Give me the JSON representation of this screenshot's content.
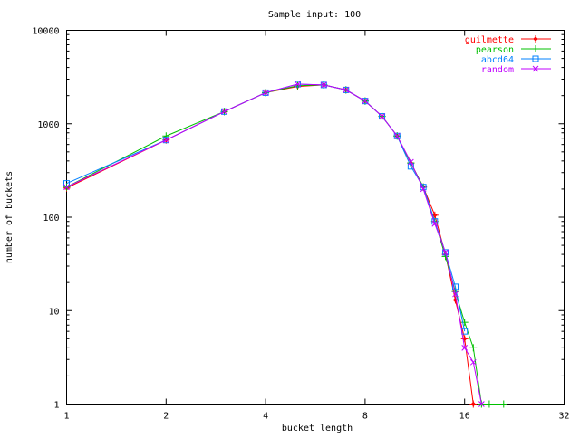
{
  "chart_data": {
    "type": "line",
    "title": "Sample input: 100",
    "xlabel": "bucket length",
    "ylabel": "number of buckets",
    "xscale": "log2",
    "yscale": "log10",
    "xlim": [
      1,
      32
    ],
    "ylim": [
      1,
      10000
    ],
    "xticks": [
      "1",
      "2",
      "4",
      "8",
      "16",
      "32"
    ],
    "yticks": [
      "1",
      "10",
      "100",
      "1000",
      "10000"
    ],
    "grid": false,
    "legend_position": "top-right",
    "series": [
      {
        "name": "guilmette",
        "color": "#ff0000",
        "marker": "plus-diamond",
        "x": [
          1,
          2,
          3,
          4,
          5,
          6,
          7,
          8,
          9,
          10,
          11,
          12,
          13,
          14,
          15,
          16,
          17
        ],
        "y": [
          205,
          670,
          1350,
          2150,
          2500,
          2600,
          2300,
          1750,
          1200,
          740,
          380,
          210,
          105,
          40,
          13,
          5,
          1
        ]
      },
      {
        "name": "pearson",
        "color": "#00c000",
        "marker": "plus",
        "x": [
          1,
          2,
          3,
          4,
          5,
          6,
          7,
          8,
          9,
          10,
          11,
          12,
          13,
          14,
          15,
          16,
          17,
          18,
          19,
          21
        ],
        "y": [
          210,
          740,
          1350,
          2150,
          2550,
          2600,
          2300,
          1750,
          1200,
          740,
          380,
          210,
          90,
          38,
          16,
          7.5,
          4,
          1,
          1,
          1
        ]
      },
      {
        "name": "abcd64",
        "color": "#0080ff",
        "marker": "square",
        "x": [
          1,
          2,
          3,
          4,
          5,
          6,
          7,
          8,
          9,
          10,
          11,
          12,
          13,
          14,
          15,
          16
        ],
        "y": [
          230,
          670,
          1350,
          2150,
          2650,
          2600,
          2300,
          1750,
          1200,
          740,
          350,
          210,
          90,
          42,
          18,
          6
        ]
      },
      {
        "name": "random",
        "color": "#c000ff",
        "marker": "cross",
        "x": [
          1,
          2,
          3,
          4,
          5,
          6,
          7,
          8,
          9,
          10,
          11,
          12,
          13,
          14,
          15,
          16,
          17,
          18
        ],
        "y": [
          210,
          670,
          1350,
          2150,
          2650,
          2600,
          2300,
          1750,
          1200,
          740,
          390,
          200,
          85,
          42,
          15,
          4,
          2.8,
          1
        ]
      }
    ]
  }
}
